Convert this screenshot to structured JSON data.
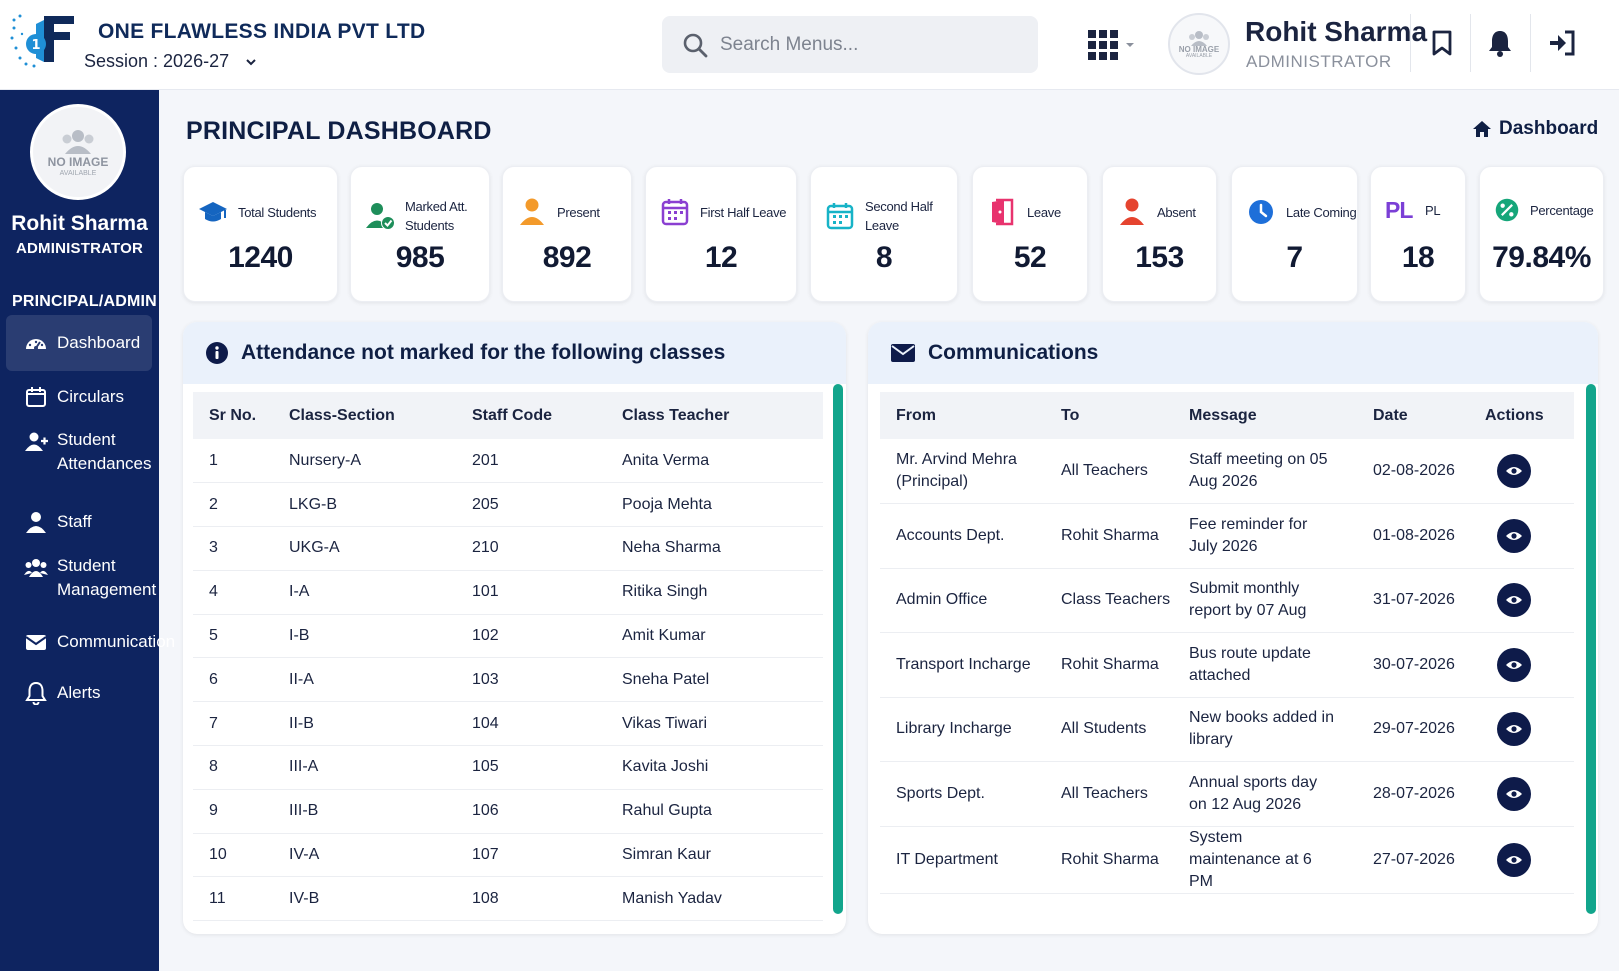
{
  "header": {
    "company": "ONE FLAWLESS INDIA PVT LTD",
    "session_label": "Session : 2026-27",
    "search_placeholder": "Search Menus...",
    "user_name": "Rohit Sharma",
    "user_role": "ADMINISTRATOR",
    "avatar_text": "NO IMAGE",
    "avatar_subtext": "AVAILABLE"
  },
  "sidebar": {
    "avatar_text": "NO IMAGE",
    "avatar_subtext": "AVAILABLE",
    "name": "Rohit Sharma",
    "role": "ADMINISTRATOR",
    "section": "PRINCIPAL/ADMIN",
    "items": [
      {
        "label": "Dashboard",
        "icon": "dashboard-icon",
        "active": true
      },
      {
        "label": "Circulars",
        "icon": "calendar-icon"
      },
      {
        "label": "Student Attendances",
        "icon": "user-plus-icon"
      },
      {
        "label": "Staff",
        "icon": "user-icon"
      },
      {
        "label": "Student Management",
        "icon": "users-icon"
      },
      {
        "label": "Communication",
        "icon": "envelope-icon"
      },
      {
        "label": "Alerts",
        "icon": "bell-icon"
      }
    ]
  },
  "page": {
    "title": "PRINCIPAL DASHBOARD",
    "breadcrumb": "Dashboard"
  },
  "stats": [
    {
      "label": "Total Students",
      "value": "1240",
      "icon": "graduation-cap-icon",
      "color": "#1565c0"
    },
    {
      "label": "Marked Att. Students",
      "value": "985",
      "icon": "user-check-icon",
      "color": "#1e8e5a"
    },
    {
      "label": "Present",
      "value": "892",
      "icon": "user-icon",
      "color": "#f39a2b"
    },
    {
      "label": "First Half Leave",
      "value": "12",
      "icon": "calendar-icon",
      "color": "#8a3fd1"
    },
    {
      "label": "Second Half Leave",
      "value": "8",
      "icon": "calendar-icon",
      "color": "#17b3c7"
    },
    {
      "label": "Leave",
      "value": "52",
      "icon": "door-exit-icon",
      "color": "#e8336e"
    },
    {
      "label": "Absent",
      "value": "153",
      "icon": "user-icon",
      "color": "#e5442f"
    },
    {
      "label": "Late Coming",
      "value": "7",
      "icon": "clock-icon",
      "color": "#1e6fd9"
    },
    {
      "label": "PL",
      "value": "18",
      "icon": "pl-icon",
      "color": "#7b3fd6",
      "badge": "PL"
    },
    {
      "label": "Percentage",
      "value": "79.84%",
      "icon": "percent-icon",
      "color": "#16a67a"
    }
  ],
  "attendance": {
    "title": "Attendance not marked for the following classes",
    "columns": [
      "Sr No.",
      "Class-Section",
      "Staff Code",
      "Class Teacher"
    ],
    "rows": [
      [
        "1",
        "Nursery-A",
        "201",
        "Anita Verma"
      ],
      [
        "2",
        "LKG-B",
        "205",
        "Pooja Mehta"
      ],
      [
        "3",
        "UKG-A",
        "210",
        "Neha Sharma"
      ],
      [
        "4",
        "I-A",
        "101",
        "Ritika Singh"
      ],
      [
        "5",
        "I-B",
        "102",
        "Amit Kumar"
      ],
      [
        "6",
        "II-A",
        "103",
        "Sneha Patel"
      ],
      [
        "7",
        "II-B",
        "104",
        "Vikas Tiwari"
      ],
      [
        "8",
        "III-A",
        "105",
        "Kavita Joshi"
      ],
      [
        "9",
        "III-B",
        "106",
        "Rahul Gupta"
      ],
      [
        "10",
        "IV-A",
        "107",
        "Simran Kaur"
      ],
      [
        "11",
        "IV-B",
        "108",
        "Manish Yadav"
      ]
    ]
  },
  "communications": {
    "title": "Communications",
    "columns": [
      "From",
      "To",
      "Message",
      "Date",
      "Actions"
    ],
    "rows": [
      [
        "Mr. Arvind Mehra (Principal)",
        "All Teachers",
        "Staff meeting on 05 Aug 2026",
        "02-08-2026"
      ],
      [
        "Accounts Dept.",
        "Rohit Sharma",
        "Fee reminder for July 2026",
        "01-08-2026"
      ],
      [
        "Admin Office",
        "Class Teachers",
        "Submit monthly report by 07 Aug",
        "31-07-2026"
      ],
      [
        "Transport Incharge",
        "Rohit Sharma",
        "Bus route update attached",
        "30-07-2026"
      ],
      [
        "Library Incharge",
        "All Students",
        "New books added in library",
        "29-07-2026"
      ],
      [
        "Sports Dept.",
        "All Teachers",
        "Annual sports day on 12 Aug 2026",
        "28-07-2026"
      ],
      [
        "IT Department",
        "Rohit Sharma",
        "System maintenance at 6 PM",
        "27-07-2026"
      ]
    ]
  },
  "colors": {
    "sidebar_bg": "#0e2460",
    "accent_green": "#12a58c",
    "navy": "#0e1b4a"
  }
}
